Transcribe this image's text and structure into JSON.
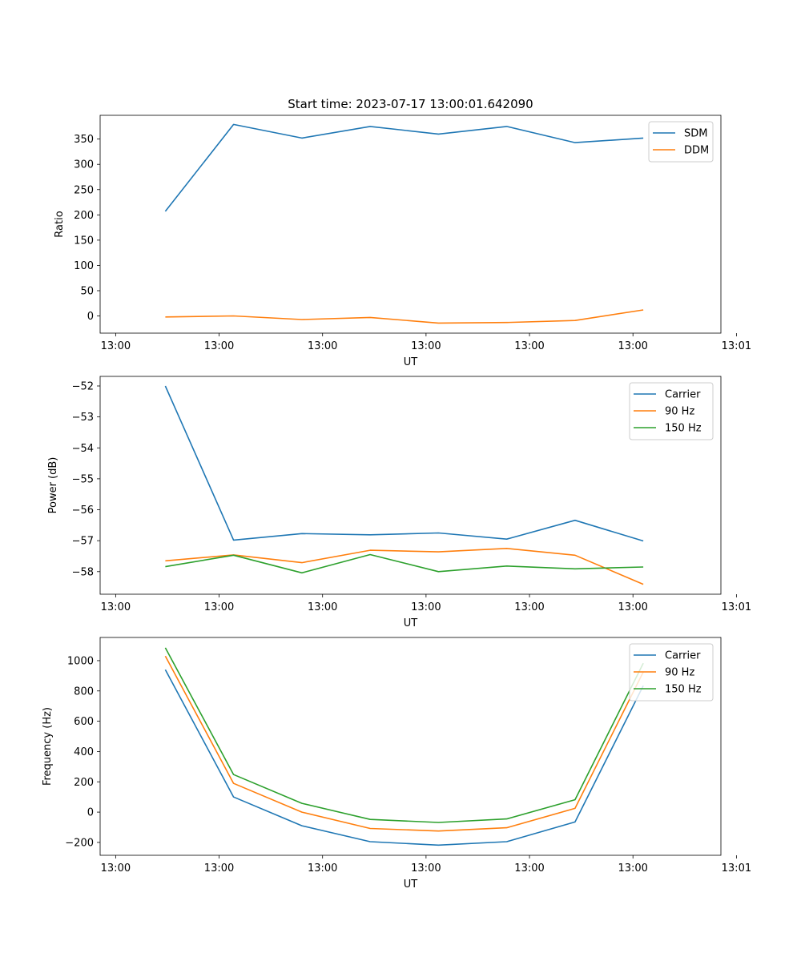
{
  "figure": {
    "title": "Start time: 2023-07-17 13:00:01.642090"
  },
  "chart_data": [
    {
      "type": "line",
      "title": "Start time: 2023-07-17 13:00:01.642090",
      "xlabel": "UT",
      "ylabel": "Ratio",
      "x_tick_labels": [
        "13:00",
        "13:00",
        "13:00",
        "13:00",
        "13:00",
        "13:00",
        "13:01"
      ],
      "x_ticks": [
        0,
        1,
        2,
        3,
        4,
        5,
        6
      ],
      "xlim": [
        -0.15,
        5.85
      ],
      "x": [
        0.48,
        1.14,
        1.8,
        2.46,
        3.12,
        3.78,
        4.44,
        5.1
      ],
      "ylim": [
        -34,
        397
      ],
      "y_ticks": [
        0,
        50,
        100,
        150,
        200,
        250,
        300,
        350
      ],
      "series": [
        {
          "name": "SDM",
          "color": "#1f77b4",
          "values": [
            207,
            379,
            352,
            375,
            360,
            375,
            343,
            352
          ]
        },
        {
          "name": "DDM",
          "color": "#ff7f0e",
          "values": [
            -2,
            0,
            -7,
            -3,
            -14,
            -13,
            -9,
            12
          ]
        }
      ],
      "legend": "top-right"
    },
    {
      "type": "line",
      "title": "",
      "xlabel": "UT",
      "ylabel": "Power (dB)",
      "x_tick_labels": [
        "13:00",
        "13:00",
        "13:00",
        "13:00",
        "13:00",
        "13:00",
        "13:01"
      ],
      "x_ticks": [
        0,
        1,
        2,
        3,
        4,
        5,
        6
      ],
      "xlim": [
        -0.15,
        5.85
      ],
      "x": [
        0.48,
        1.14,
        1.8,
        2.46,
        3.12,
        3.78,
        4.44,
        5.1
      ],
      "ylim": [
        -58.73,
        -51.69
      ],
      "y_ticks": [
        -58,
        -57,
        -56,
        -55,
        -54,
        -53,
        -52
      ],
      "series": [
        {
          "name": "Carrier",
          "color": "#1f77b4",
          "values": [
            -52.0,
            -56.98,
            -56.77,
            -56.81,
            -56.75,
            -56.95,
            -56.34,
            -57.01
          ]
        },
        {
          "name": "90 Hz",
          "color": "#ff7f0e",
          "values": [
            -57.65,
            -57.46,
            -57.71,
            -57.31,
            -57.36,
            -57.25,
            -57.47,
            -58.41
          ]
        },
        {
          "name": "150 Hz",
          "color": "#2ca02c",
          "values": [
            -57.84,
            -57.47,
            -58.04,
            -57.45,
            -58.0,
            -57.82,
            -57.91,
            -57.85
          ]
        }
      ],
      "legend": "top-right"
    },
    {
      "type": "line",
      "title": "",
      "xlabel": "UT",
      "ylabel": "Frequency (Hz)",
      "x_tick_labels": [
        "13:00",
        "13:00",
        "13:00",
        "13:00",
        "13:00",
        "13:00",
        "13:01"
      ],
      "x_ticks": [
        0,
        1,
        2,
        3,
        4,
        5,
        6
      ],
      "xlim": [
        -0.15,
        5.85
      ],
      "x": [
        0.48,
        1.14,
        1.8,
        2.46,
        3.12,
        3.78,
        4.44,
        5.1
      ],
      "ylim": [
        -285,
        1153
      ],
      "y_ticks": [
        -200,
        0,
        200,
        400,
        600,
        800,
        1000
      ],
      "series": [
        {
          "name": "Carrier",
          "color": "#1f77b4",
          "values": [
            940,
            100,
            -90,
            -195,
            -218,
            -195,
            -65,
            835
          ]
        },
        {
          "name": "90 Hz",
          "color": "#ff7f0e",
          "values": [
            1030,
            190,
            0,
            -108,
            -125,
            -103,
            25,
            925
          ]
        },
        {
          "name": "150 Hz",
          "color": "#2ca02c",
          "values": [
            1085,
            248,
            58,
            -48,
            -68,
            -45,
            82,
            983
          ]
        }
      ],
      "legend": "top-right"
    }
  ]
}
